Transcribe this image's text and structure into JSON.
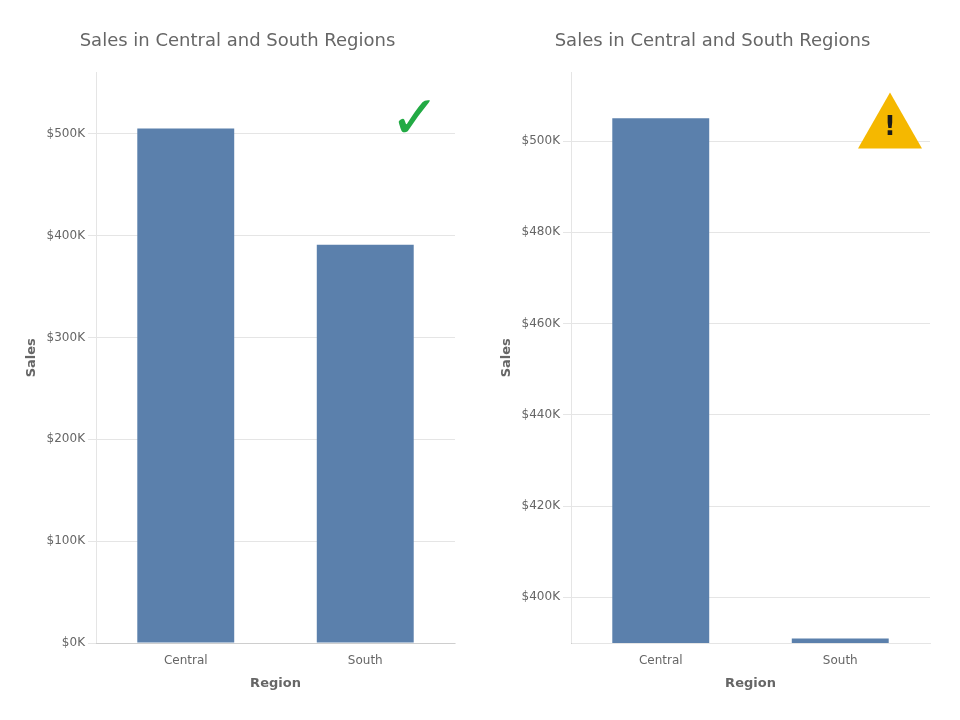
{
  "chart_data": [
    {
      "type": "bar",
      "title": "Sales in Central and South Regions",
      "categories": [
        "Central",
        "South"
      ],
      "values": [
        505000,
        391000
      ],
      "color": "#5b80ac",
      "xlabel": "Region",
      "ylabel": "Sales",
      "ylim": [
        0,
        560000
      ],
      "yticks": [
        {
          "value": 0,
          "label": "$0K"
        },
        {
          "value": 100000,
          "label": "$100K"
        },
        {
          "value": 200000,
          "label": "$200K"
        },
        {
          "value": 300000,
          "label": "$300K"
        },
        {
          "value": 400000,
          "label": "$400K"
        },
        {
          "value": 500000,
          "label": "$500K"
        }
      ],
      "grid": true,
      "annotations": [
        {
          "text": "✓",
          "color": "#22aa44"
        }
      ]
    },
    {
      "type": "bar",
      "title": "Sales in Central and South Regions",
      "categories": [
        "Central",
        "South"
      ],
      "values": [
        505000,
        391000
      ],
      "color": "#5b80ac",
      "xlabel": "Region",
      "ylabel": "Sales",
      "ylim": [
        390000,
        515000
      ],
      "yticks": [
        {
          "value": 400000,
          "label": "$400K"
        },
        {
          "value": 420000,
          "label": "$420K"
        },
        {
          "value": 440000,
          "label": "$440K"
        },
        {
          "value": 460000,
          "label": "$460K"
        },
        {
          "value": 480000,
          "label": "$480K"
        },
        {
          "value": 500000,
          "label": "$500K"
        }
      ],
      "grid": true,
      "annotations": [
        {
          "text": "!",
          "color": "#f5b800",
          "marker": "triangle"
        }
      ]
    }
  ]
}
